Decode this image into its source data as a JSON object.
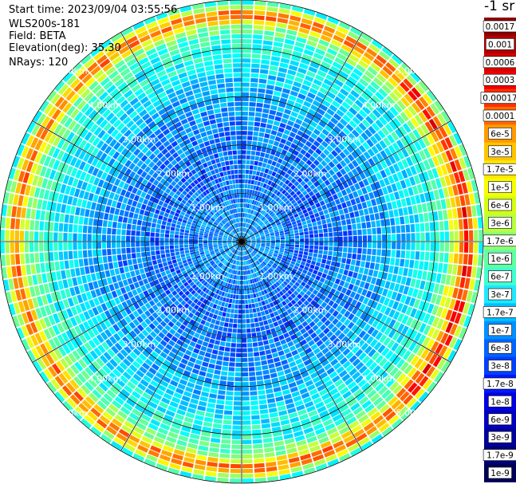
{
  "header": {
    "start_time": "Start time: 2023/09/04 03:55:56",
    "instrument": "WLS200s-181",
    "field": "Field: BETA",
    "elevation": "Elevation(deg): 35.30",
    "nrays": "NRays: 120"
  },
  "colorbar": {
    "unit_label": "-1 sr",
    "labels": [
      "0.0017",
      "0.001",
      "0.0006",
      "0.0003",
      "0.00017",
      "0.0001",
      "6e-5",
      "3e-5",
      "1.7e-5",
      "1e-5",
      "6e-6",
      "3e-6",
      "1.7e-6",
      "1e-6",
      "6e-7",
      "3e-7",
      "1.7e-7",
      "1e-7",
      "6e-8",
      "3e-8",
      "1.7e-8",
      "1e-8",
      "6e-9",
      "3e-9",
      "1.7e-9",
      "1e-9"
    ],
    "colors": [
      "#8b0000",
      "#b00000",
      "#d40000",
      "#f00000",
      "#ff3000",
      "#ff6a00",
      "#ff9a00",
      "#ffc400",
      "#ffe800",
      "#f6ff00",
      "#d4ff10",
      "#b8ff40",
      "#90ff70",
      "#60ffa0",
      "#40ffd0",
      "#20e8ff",
      "#00c0ff",
      "#0090ff",
      "#0064ff",
      "#0040ff",
      "#0018ff",
      "#0000e0",
      "#0000c0",
      "#00009c",
      "#000078",
      "#000058"
    ]
  },
  "chart_data": {
    "type": "heatmap",
    "projection": "polar PPI",
    "rays": 120,
    "range_rings_km": [
      1.0,
      2.0,
      3.0,
      4.0,
      5.0
    ],
    "ring_labels": [
      "1.00km",
      "2.00km",
      "3.00km",
      "4.00km",
      "5.00km"
    ],
    "max_range_km": 5.0,
    "radial_lines_every_deg": 30,
    "field": "BETA",
    "profile_log10": [
      {
        "r": 0.0,
        "v": -7.2
      },
      {
        "r": 1.5,
        "v": -7.6
      },
      {
        "r": 2.5,
        "v": -7.4
      },
      {
        "r": 3.3,
        "v": -7.0
      },
      {
        "r": 3.8,
        "v": -6.6
      },
      {
        "r": 4.2,
        "v": -6.4
      },
      {
        "r": 4.5,
        "v": -5.6
      },
      {
        "r": 4.62,
        "v": -4.3
      },
      {
        "r": 4.72,
        "v": -4.2
      },
      {
        "r": 4.82,
        "v": -5.0
      },
      {
        "r": 4.92,
        "v": -6.2
      },
      {
        "r": 5.0,
        "v": -6.6
      }
    ]
  }
}
